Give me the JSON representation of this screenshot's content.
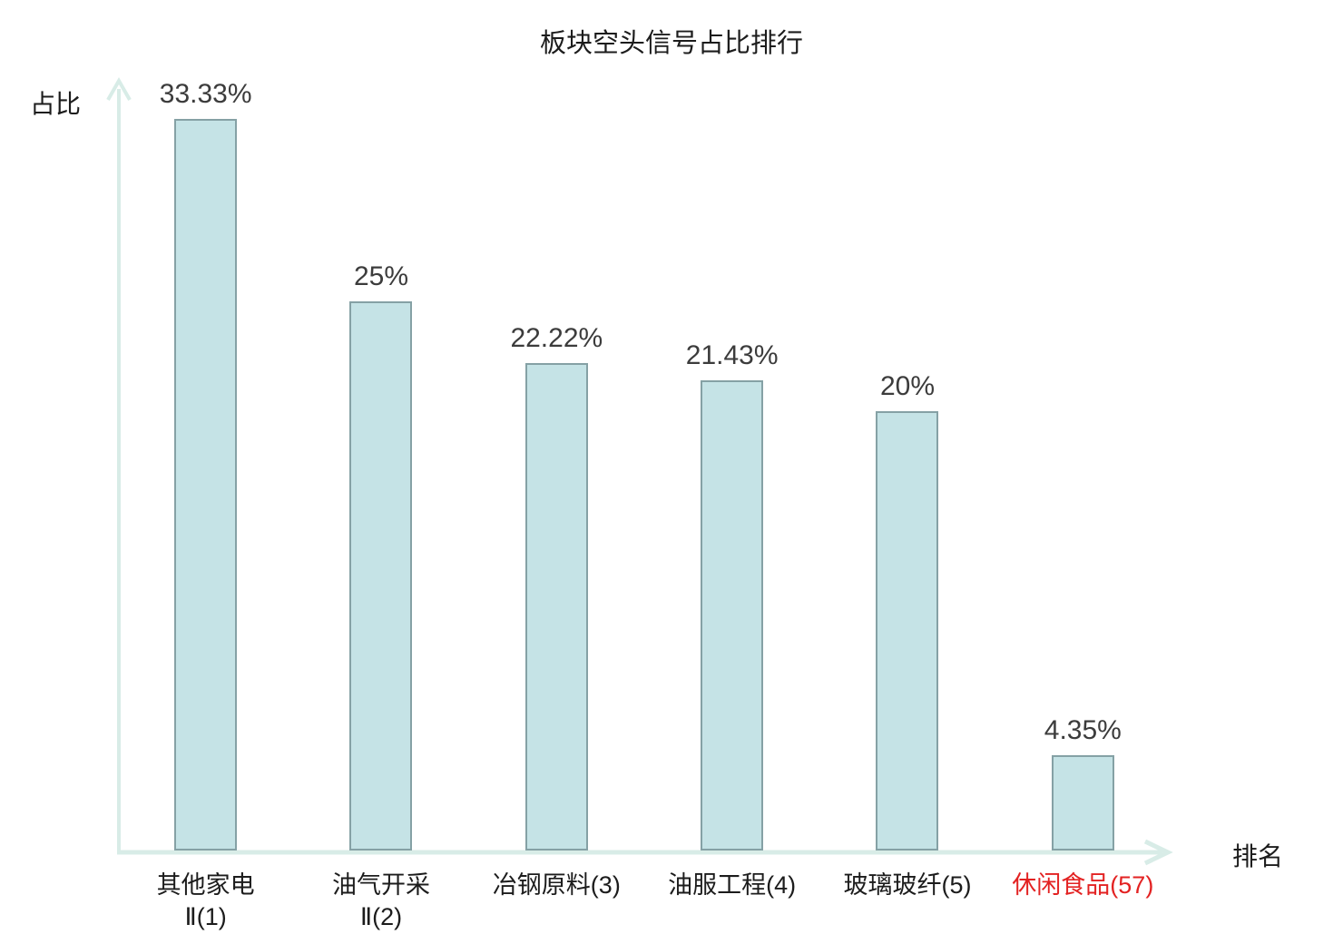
{
  "title": "板块空头信号占比排行",
  "axes": {
    "y_label": "占比",
    "x_label": "排名"
  },
  "colors": {
    "bar_fill": "#c5e3e6",
    "bar_border": "#85a1a5",
    "axis": "#d8ece7",
    "value_text": "#3c3c3c",
    "label_text": "#1c1c1c",
    "highlight_text": "#e32222"
  },
  "chart_data": {
    "type": "bar",
    "title": "板块空头信号占比排行",
    "xlabel": "排名",
    "ylabel": "占比",
    "ylim": [
      0,
      35
    ],
    "grid": false,
    "legend": false,
    "categories": [
      "其他家电Ⅱ(1)",
      "油气开采Ⅱ(2)",
      "冶钢原料(3)",
      "油服工程(4)",
      "玻璃玻纤(5)",
      "休闲食品(57)"
    ],
    "values": [
      33.33,
      25,
      22.22,
      21.43,
      20,
      4.35
    ],
    "bars": [
      {
        "value": 33.33,
        "value_label": "33.33%",
        "category_line1": "其他家电",
        "category_line2": "Ⅱ(1)",
        "highlight": false
      },
      {
        "value": 25,
        "value_label": "25%",
        "category_line1": "油气开采",
        "category_line2": "Ⅱ(2)",
        "highlight": false
      },
      {
        "value": 22.22,
        "value_label": "22.22%",
        "category_line1": "冶钢原料(3)",
        "category_line2": "",
        "highlight": false
      },
      {
        "value": 21.43,
        "value_label": "21.43%",
        "category_line1": "油服工程(4)",
        "category_line2": "",
        "highlight": false
      },
      {
        "value": 20,
        "value_label": "20%",
        "category_line1": "玻璃玻纤(5)",
        "category_line2": "",
        "highlight": false
      },
      {
        "value": 4.35,
        "value_label": "4.35%",
        "category_line1": "休闲食品(57)",
        "category_line2": "",
        "highlight": true
      }
    ]
  }
}
